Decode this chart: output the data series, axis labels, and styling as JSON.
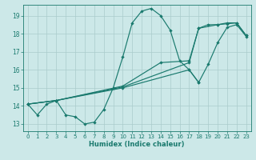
{
  "xlabel": "Humidex (Indice chaleur)",
  "bg_color": "#cce8e8",
  "line_color": "#1a7a6e",
  "grid_color": "#aacccc",
  "xlim": [
    -0.5,
    23.5
  ],
  "ylim": [
    12.6,
    19.6
  ],
  "xticks": [
    0,
    1,
    2,
    3,
    4,
    5,
    6,
    7,
    8,
    9,
    10,
    11,
    12,
    13,
    14,
    15,
    16,
    17,
    18,
    19,
    20,
    21,
    22,
    23
  ],
  "yticks": [
    13,
    14,
    15,
    16,
    17,
    18,
    19
  ],
  "line1_x": [
    0,
    1,
    2,
    3,
    4,
    5,
    6,
    7,
    8,
    9,
    10,
    11,
    12,
    13,
    14,
    15,
    16,
    17,
    18
  ],
  "line1_y": [
    14.1,
    13.5,
    14.1,
    14.3,
    13.5,
    13.4,
    13.0,
    13.1,
    13.8,
    15.0,
    16.7,
    18.6,
    19.25,
    19.4,
    19.0,
    18.2,
    16.5,
    16.0,
    15.3
  ],
  "line2_x": [
    0,
    3,
    10,
    14,
    17,
    18,
    19,
    20,
    21,
    22,
    23
  ],
  "line2_y": [
    14.1,
    14.3,
    15.1,
    16.4,
    16.5,
    18.3,
    18.5,
    18.5,
    18.6,
    18.6,
    17.9
  ],
  "line3_x": [
    0,
    3,
    10,
    17,
    18,
    19,
    20,
    21,
    22,
    23
  ],
  "line3_y": [
    14.1,
    14.3,
    15.0,
    16.0,
    15.3,
    16.3,
    17.5,
    18.35,
    18.5,
    17.85
  ],
  "line4_x": [
    0,
    3,
    10,
    17,
    18,
    20,
    21,
    22,
    23
  ],
  "line4_y": [
    14.1,
    14.3,
    15.05,
    16.4,
    18.3,
    18.5,
    18.55,
    18.6,
    17.9
  ]
}
